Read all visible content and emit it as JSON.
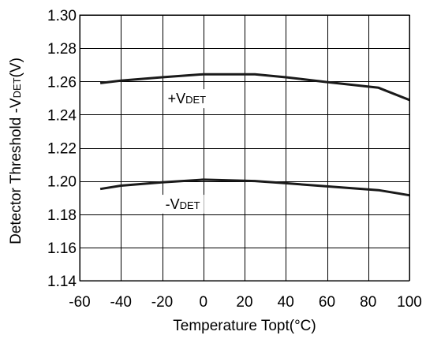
{
  "chart_data": {
    "type": "line",
    "xlabel": "Temperature Topt(°C)",
    "ylabel": {
      "prefix": "Detector Threshold -V",
      "sub": "DET",
      "suffix": "(V)"
    },
    "xlim": [
      -60,
      100
    ],
    "ylim": [
      1.14,
      1.3
    ],
    "xticks": [
      -60,
      -40,
      -20,
      0,
      20,
      40,
      60,
      80,
      100
    ],
    "yticks": [
      1.14,
      1.16,
      1.18,
      1.2,
      1.22,
      1.24,
      1.26,
      1.28,
      1.3
    ],
    "grid": true,
    "series": [
      {
        "name": {
          "prefix": "+V",
          "sub": "DET"
        },
        "x": [
          -50,
          -40,
          -20,
          0,
          25,
          40,
          60,
          85,
          100
        ],
        "y": [
          1.259,
          1.2605,
          1.2625,
          1.2643,
          1.2643,
          1.2625,
          1.2596,
          1.2562,
          1.2488
        ]
      },
      {
        "name": {
          "prefix": "-V",
          "sub": "DET"
        },
        "x": [
          -50,
          -40,
          -20,
          0,
          25,
          40,
          60,
          85,
          100
        ],
        "y": [
          1.1952,
          1.1972,
          1.1992,
          1.2008,
          1.2,
          1.1987,
          1.1968,
          1.1945,
          1.1914
        ]
      }
    ]
  }
}
